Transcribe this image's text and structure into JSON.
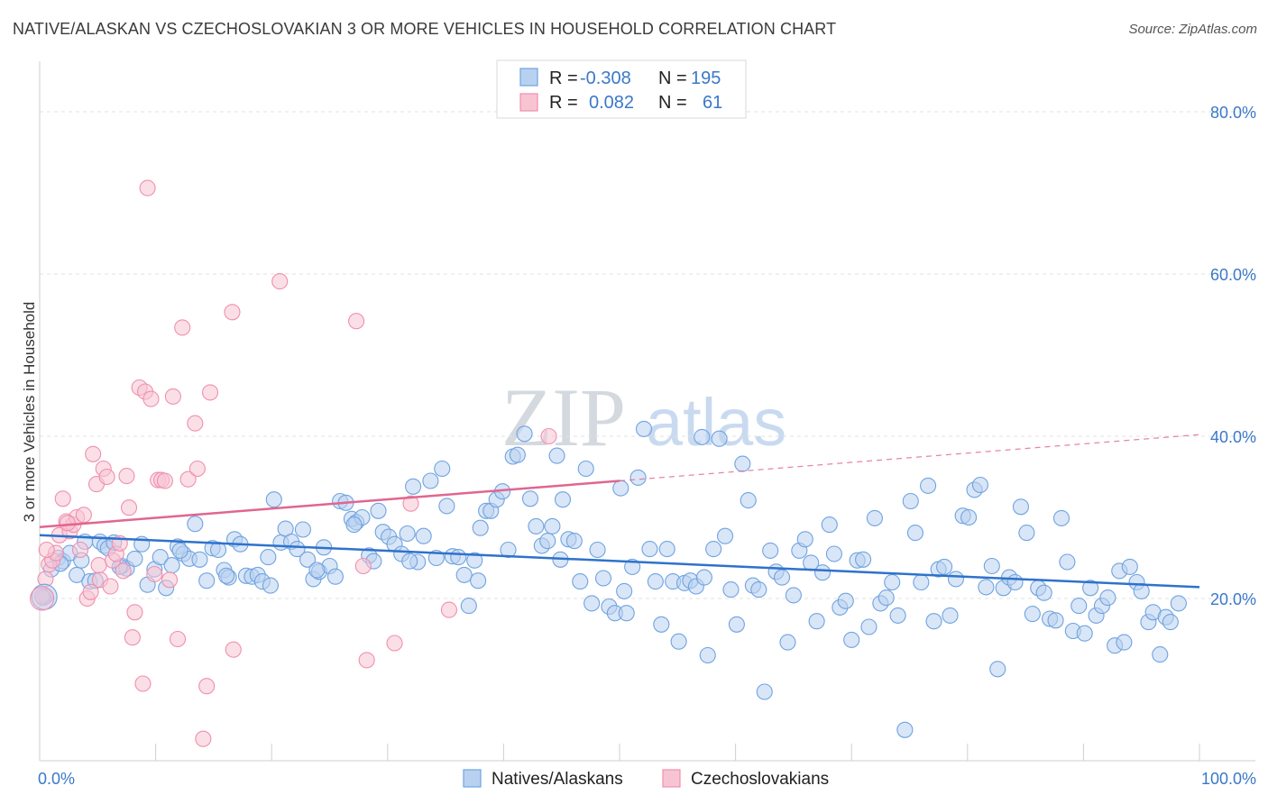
{
  "title": "NATIVE/ALASKAN VS CZECHOSLOVAKIAN 3 OR MORE VEHICLES IN HOUSEHOLD CORRELATION CHART",
  "source": "Source: ZipAtlas.com",
  "watermark": {
    "zip": "ZIP",
    "atlas": "atlas"
  },
  "colors": {
    "blue": "#6fa3e0",
    "blue_fill": "#b9d1f1",
    "blue_line": "#2f72cc",
    "pink": "#f08fae",
    "pink_fill": "#f8c4d4",
    "pink_line": "#e06690",
    "axis_text": "#3a78c9"
  },
  "legend": {
    "rows": [
      {
        "r_label": "R =",
        "r_value": "-0.308",
        "n_label": "N =",
        "n_value": "195"
      },
      {
        "r_label": "R =",
        "r_value": "0.082",
        "n_label": "N =",
        "n_value": "61"
      }
    ]
  },
  "bottom_legend": [
    {
      "label": "Natives/Alaskans"
    },
    {
      "label": "Czechoslovakians"
    }
  ],
  "chart_data": {
    "type": "scatter",
    "title": "NATIVE/ALASKAN VS CZECHOSLOVAKIAN 3 OR MORE VEHICLES IN HOUSEHOLD CORRELATION CHART",
    "xlabel": "",
    "ylabel": "3 or more Vehicles in Household",
    "xlim": [
      0,
      100
    ],
    "ylim": [
      0,
      85
    ],
    "x_tick_labels": [
      "0.0%",
      "100.0%"
    ],
    "y_ticks": [
      20,
      40,
      60,
      80
    ],
    "y_tick_labels": [
      "20.0%",
      "40.0%",
      "60.0%",
      "80.0%"
    ],
    "grid": true,
    "legend_position": "top-center",
    "series": [
      {
        "name": "Natives/Alaskans",
        "color": "#6fa3e0",
        "trend": {
          "x": [
            0,
            100
          ],
          "y": [
            27.8,
            21.4
          ]
        },
        "points": [
          [
            0.5,
            20.3
          ],
          [
            1.0,
            23.6
          ],
          [
            1.6,
            25.0
          ],
          [
            2.0,
            24.6
          ],
          [
            2.6,
            25.6
          ],
          [
            3.2,
            22.9
          ],
          [
            3.6,
            24.7
          ],
          [
            4.3,
            22.1
          ],
          [
            4.8,
            22.2
          ],
          [
            5.2,
            27.0
          ],
          [
            5.6,
            26.5
          ],
          [
            5.9,
            26.2
          ],
          [
            6.4,
            26.9
          ],
          [
            7.1,
            24.0
          ],
          [
            7.5,
            23.7
          ],
          [
            8.2,
            24.9
          ],
          [
            8.8,
            26.7
          ],
          [
            9.3,
            21.7
          ],
          [
            9.9,
            23.6
          ],
          [
            10.4,
            25.1
          ],
          [
            10.9,
            21.3
          ],
          [
            11.4,
            24.1
          ],
          [
            11.9,
            26.4
          ],
          [
            12.4,
            25.5
          ],
          [
            12.9,
            24.9
          ],
          [
            13.4,
            29.2
          ],
          [
            13.8,
            24.8
          ],
          [
            14.4,
            22.2
          ],
          [
            14.9,
            26.2
          ],
          [
            15.4,
            26.0
          ],
          [
            15.9,
            23.5
          ],
          [
            16.3,
            22.6
          ],
          [
            16.8,
            27.3
          ],
          [
            17.3,
            26.7
          ],
          [
            17.8,
            22.8
          ],
          [
            18.3,
            22.7
          ],
          [
            18.8,
            22.9
          ],
          [
            19.2,
            22.1
          ],
          [
            19.7,
            25.1
          ],
          [
            20.2,
            32.2
          ],
          [
            20.8,
            26.9
          ],
          [
            21.2,
            28.6
          ],
          [
            21.7,
            27.0
          ],
          [
            22.2,
            26.1
          ],
          [
            22.7,
            28.5
          ],
          [
            23.1,
            24.8
          ],
          [
            23.6,
            22.4
          ],
          [
            24.1,
            23.3
          ],
          [
            24.5,
            26.3
          ],
          [
            25.0,
            24.0
          ],
          [
            25.5,
            22.7
          ],
          [
            25.9,
            32.0
          ],
          [
            26.4,
            31.8
          ],
          [
            26.9,
            29.8
          ],
          [
            27.3,
            29.4
          ],
          [
            27.8,
            30.0
          ],
          [
            28.4,
            25.3
          ],
          [
            28.8,
            24.6
          ],
          [
            29.2,
            30.8
          ],
          [
            29.6,
            28.2
          ],
          [
            30.1,
            27.6
          ],
          [
            30.6,
            26.7
          ],
          [
            31.2,
            25.5
          ],
          [
            31.7,
            28.0
          ],
          [
            32.2,
            33.8
          ],
          [
            32.6,
            24.5
          ],
          [
            33.1,
            27.7
          ],
          [
            33.7,
            34.5
          ],
          [
            34.2,
            25.0
          ],
          [
            34.7,
            36.0
          ],
          [
            35.1,
            31.4
          ],
          [
            35.6,
            25.2
          ],
          [
            36.1,
            25.1
          ],
          [
            36.6,
            22.9
          ],
          [
            37.0,
            19.1
          ],
          [
            37.5,
            24.7
          ],
          [
            38.0,
            28.7
          ],
          [
            38.5,
            30.8
          ],
          [
            38.9,
            30.8
          ],
          [
            39.4,
            32.2
          ],
          [
            39.9,
            33.2
          ],
          [
            40.4,
            26.0
          ],
          [
            40.8,
            37.5
          ],
          [
            41.2,
            37.7
          ],
          [
            41.8,
            40.3
          ],
          [
            42.3,
            32.3
          ],
          [
            42.8,
            28.9
          ],
          [
            43.3,
            26.5
          ],
          [
            43.8,
            27.1
          ],
          [
            44.2,
            28.9
          ],
          [
            44.6,
            37.6
          ],
          [
            45.1,
            32.2
          ],
          [
            45.6,
            27.3
          ],
          [
            46.1,
            27.1
          ],
          [
            46.6,
            22.1
          ],
          [
            47.1,
            36.0
          ],
          [
            47.6,
            19.4
          ],
          [
            48.1,
            26.0
          ],
          [
            48.6,
            22.5
          ],
          [
            49.1,
            19.0
          ],
          [
            49.6,
            18.2
          ],
          [
            50.1,
            33.6
          ],
          [
            50.6,
            18.2
          ],
          [
            51.1,
            23.9
          ],
          [
            51.6,
            34.9
          ],
          [
            52.1,
            40.9
          ],
          [
            52.6,
            26.1
          ],
          [
            53.1,
            22.1
          ],
          [
            53.6,
            16.8
          ],
          [
            54.1,
            26.1
          ],
          [
            54.6,
            22.1
          ],
          [
            55.1,
            14.7
          ],
          [
            55.6,
            21.9
          ],
          [
            56.1,
            22.2
          ],
          [
            56.6,
            21.5
          ],
          [
            57.1,
            39.9
          ],
          [
            57.6,
            13.0
          ],
          [
            58.1,
            26.1
          ],
          [
            58.6,
            39.7
          ],
          [
            59.1,
            27.7
          ],
          [
            59.6,
            21.1
          ],
          [
            60.1,
            16.8
          ],
          [
            60.6,
            36.6
          ],
          [
            61.1,
            32.1
          ],
          [
            61.5,
            21.6
          ],
          [
            62.0,
            21.1
          ],
          [
            62.5,
            8.5
          ],
          [
            63.0,
            25.9
          ],
          [
            63.5,
            23.3
          ],
          [
            64.0,
            22.6
          ],
          [
            64.5,
            14.6
          ],
          [
            65.0,
            20.4
          ],
          [
            65.5,
            25.9
          ],
          [
            66.0,
            27.3
          ],
          [
            66.5,
            24.4
          ],
          [
            67.0,
            17.2
          ],
          [
            67.5,
            23.2
          ],
          [
            68.1,
            29.1
          ],
          [
            68.5,
            25.5
          ],
          [
            69.0,
            18.9
          ],
          [
            69.5,
            19.7
          ],
          [
            70.0,
            14.9
          ],
          [
            70.5,
            24.7
          ],
          [
            71.0,
            24.8
          ],
          [
            71.5,
            16.5
          ],
          [
            72.0,
            29.9
          ],
          [
            72.5,
            19.4
          ],
          [
            73.0,
            20.1
          ],
          [
            73.5,
            22.0
          ],
          [
            74.0,
            17.9
          ],
          [
            74.6,
            3.8
          ],
          [
            75.1,
            32.0
          ],
          [
            75.5,
            28.1
          ],
          [
            76.0,
            22.0
          ],
          [
            76.6,
            33.9
          ],
          [
            77.1,
            17.2
          ],
          [
            77.5,
            23.6
          ],
          [
            78.0,
            23.9
          ],
          [
            78.5,
            17.9
          ],
          [
            79.0,
            22.4
          ],
          [
            79.6,
            30.2
          ],
          [
            80.1,
            30.0
          ],
          [
            80.6,
            33.4
          ],
          [
            81.1,
            34.0
          ],
          [
            81.6,
            21.4
          ],
          [
            82.1,
            24.0
          ],
          [
            82.6,
            11.3
          ],
          [
            83.1,
            21.3
          ],
          [
            83.6,
            22.6
          ],
          [
            84.1,
            22.0
          ],
          [
            84.6,
            31.3
          ],
          [
            85.1,
            28.1
          ],
          [
            85.6,
            18.1
          ],
          [
            86.1,
            21.3
          ],
          [
            86.6,
            20.7
          ],
          [
            87.1,
            17.5
          ],
          [
            87.6,
            17.3
          ],
          [
            88.1,
            29.9
          ],
          [
            88.6,
            24.5
          ],
          [
            89.1,
            16.0
          ],
          [
            89.6,
            19.1
          ],
          [
            90.1,
            15.7
          ],
          [
            90.6,
            21.3
          ],
          [
            91.1,
            17.9
          ],
          [
            91.6,
            19.1
          ],
          [
            92.1,
            20.1
          ],
          [
            92.7,
            14.2
          ],
          [
            93.1,
            23.4
          ],
          [
            93.5,
            14.6
          ],
          [
            94.0,
            23.9
          ],
          [
            94.6,
            22.0
          ],
          [
            95.0,
            20.9
          ],
          [
            95.6,
            17.1
          ],
          [
            96.0,
            18.3
          ],
          [
            96.6,
            13.1
          ],
          [
            97.1,
            17.7
          ],
          [
            97.5,
            17.1
          ],
          [
            98.2,
            19.4
          ],
          [
            0.3,
            20.1
          ],
          [
            1.8,
            24.3
          ],
          [
            3.9,
            27.0
          ],
          [
            6.9,
            23.9
          ],
          [
            12.1,
            25.9
          ],
          [
            16.1,
            22.8
          ],
          [
            19.9,
            21.6
          ],
          [
            23.9,
            23.5
          ],
          [
            27.1,
            29.1
          ],
          [
            31.9,
            24.6
          ],
          [
            37.8,
            22.2
          ],
          [
            44.9,
            24.8
          ],
          [
            50.4,
            20.9
          ],
          [
            57.3,
            22.6
          ]
        ]
      },
      {
        "name": "Czechoslovakians",
        "color": "#f08fae",
        "trend": {
          "x": [
            0,
            50
          ],
          "y": [
            28.8,
            34.5
          ],
          "dashed_to": {
            "x": 100,
            "y": 40.2
          }
        },
        "points": [
          [
            0.2,
            20.3
          ],
          [
            0.5,
            22.4
          ],
          [
            0.8,
            24.2
          ],
          [
            1.1,
            24.7
          ],
          [
            1.4,
            25.6
          ],
          [
            1.7,
            27.8
          ],
          [
            2.0,
            32.3
          ],
          [
            2.3,
            29.5
          ],
          [
            2.6,
            28.3
          ],
          [
            2.9,
            29.1
          ],
          [
            3.2,
            30.0
          ],
          [
            3.5,
            26.0
          ],
          [
            3.8,
            30.3
          ],
          [
            4.1,
            20.0
          ],
          [
            4.4,
            20.8
          ],
          [
            4.6,
            37.8
          ],
          [
            4.9,
            34.1
          ],
          [
            5.2,
            22.3
          ],
          [
            5.5,
            36.0
          ],
          [
            5.8,
            35.0
          ],
          [
            6.1,
            21.5
          ],
          [
            6.3,
            24.7
          ],
          [
            6.6,
            25.5
          ],
          [
            6.9,
            26.8
          ],
          [
            7.2,
            23.4
          ],
          [
            7.5,
            35.1
          ],
          [
            7.7,
            31.2
          ],
          [
            8.0,
            15.2
          ],
          [
            8.2,
            18.3
          ],
          [
            8.6,
            46.0
          ],
          [
            8.9,
            9.5
          ],
          [
            9.1,
            45.5
          ],
          [
            9.3,
            70.6
          ],
          [
            9.6,
            44.6
          ],
          [
            9.9,
            23.0
          ],
          [
            10.2,
            34.6
          ],
          [
            10.5,
            34.6
          ],
          [
            10.8,
            34.5
          ],
          [
            11.2,
            22.3
          ],
          [
            11.5,
            44.9
          ],
          [
            11.9,
            15.0
          ],
          [
            12.3,
            53.4
          ],
          [
            12.8,
            34.7
          ],
          [
            13.4,
            41.6
          ],
          [
            13.6,
            36.0
          ],
          [
            14.1,
            2.7
          ],
          [
            14.4,
            9.2
          ],
          [
            14.7,
            45.4
          ],
          [
            16.6,
            55.3
          ],
          [
            16.7,
            13.7
          ],
          [
            20.7,
            59.1
          ],
          [
            27.3,
            54.2
          ],
          [
            27.9,
            24.0
          ],
          [
            28.2,
            12.4
          ],
          [
            30.6,
            14.5
          ],
          [
            32.0,
            31.7
          ],
          [
            35.3,
            18.6
          ],
          [
            43.9,
            40.0
          ],
          [
            0.6,
            26.0
          ],
          [
            2.4,
            29.3
          ],
          [
            5.1,
            24.1
          ]
        ]
      }
    ]
  }
}
